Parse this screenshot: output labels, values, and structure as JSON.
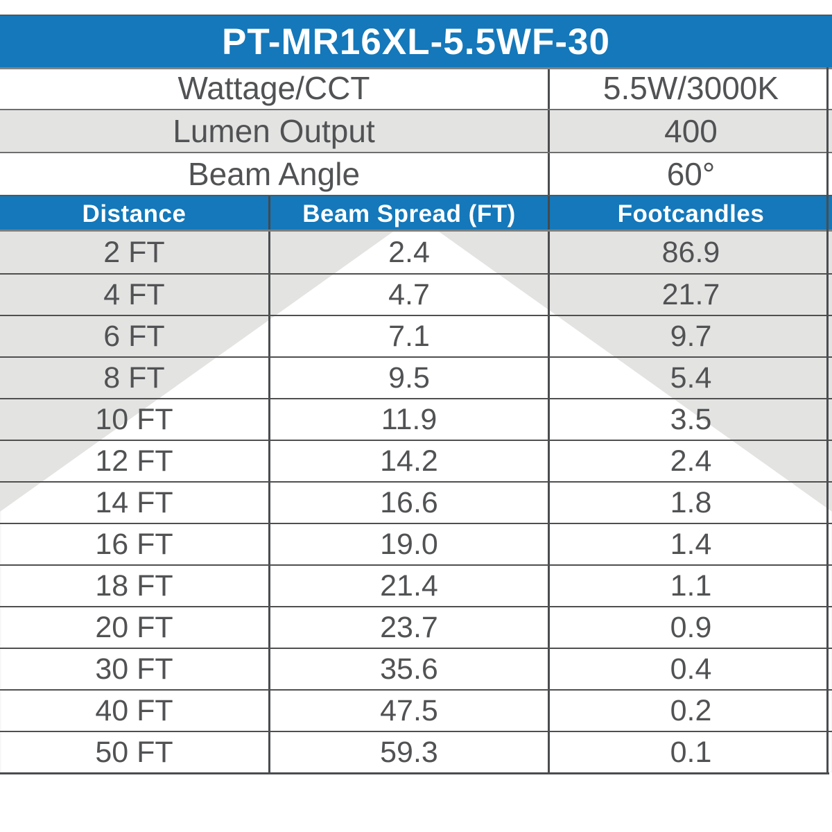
{
  "title": "PT-MR16XL-5.5WF-30",
  "specs": [
    {
      "label": "Wattage/CCT",
      "value": "5.5W/3000K"
    },
    {
      "label": "Lumen Output",
      "value": "400"
    },
    {
      "label": "Beam Angle",
      "value": "60°"
    }
  ],
  "table": {
    "columns": [
      "Distance",
      "Beam Spread (FT)",
      "Footcandles"
    ],
    "rows": [
      [
        "2 FT",
        "2.4",
        "86.9"
      ],
      [
        "4 FT",
        "4.7",
        "21.7"
      ],
      [
        "6 FT",
        "7.1",
        "9.7"
      ],
      [
        "8 FT",
        "9.5",
        "5.4"
      ],
      [
        "10 FT",
        "11.9",
        "3.5"
      ],
      [
        "12 FT",
        "14.2",
        "2.4"
      ],
      [
        "14 FT",
        "16.6",
        "1.8"
      ],
      [
        "16 FT",
        "19.0",
        "1.4"
      ],
      [
        "18 FT",
        "21.4",
        "1.1"
      ],
      [
        "20 FT",
        "23.7",
        "0.9"
      ],
      [
        "30 FT",
        "35.6",
        "0.4"
      ],
      [
        "40 FT",
        "47.5",
        "0.2"
      ],
      [
        "50 FT",
        "59.3",
        "0.1"
      ]
    ]
  },
  "graphics": {
    "beam_cone": "white 60-degree light beam cone widening downward behind data rows"
  },
  "colors": {
    "accent_blue": "#1478BA",
    "row_gray": "#E3E3E2",
    "line_dark": "#4F4F50",
    "text_gray": "#515254",
    "header_text": "#FFFFFF"
  }
}
